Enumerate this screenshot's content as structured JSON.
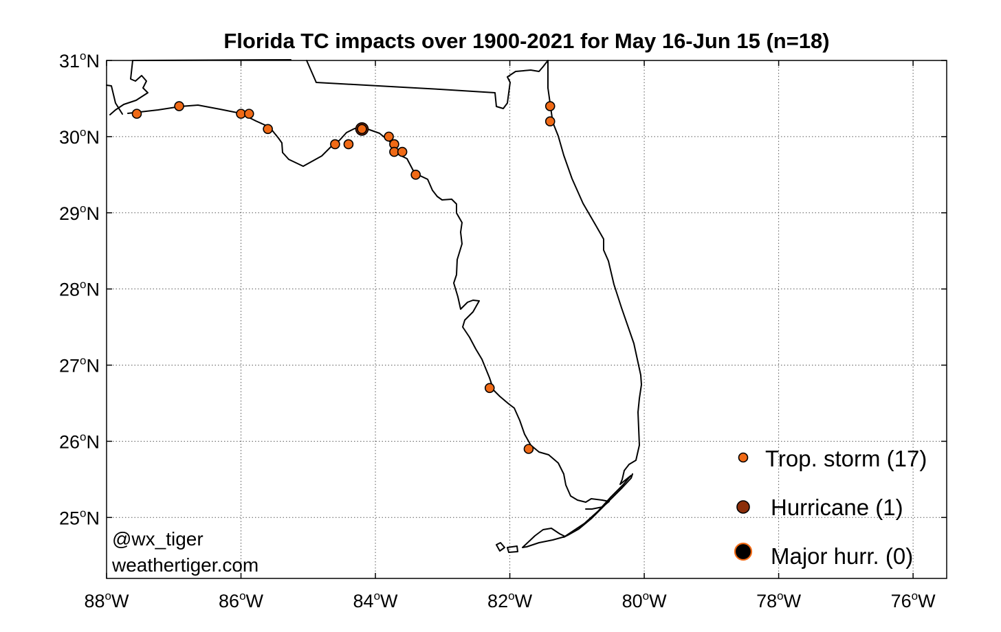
{
  "title": "Florida TC impacts over 1900-2021 for May 16-Jun 15 (n=18)",
  "map_extent": {
    "lon_min": -88,
    "lon_max": -75.5,
    "lat_min": 24.2,
    "lat_max": 31
  },
  "lat_ticks": [
    {
      "value": 31,
      "num": "31",
      "unit": "N"
    },
    {
      "value": 30,
      "num": "30",
      "unit": "N"
    },
    {
      "value": 29,
      "num": "29",
      "unit": "N"
    },
    {
      "value": 28,
      "num": "28",
      "unit": "N"
    },
    {
      "value": 27,
      "num": "27",
      "unit": "N"
    },
    {
      "value": 26,
      "num": "26",
      "unit": "N"
    },
    {
      "value": 25,
      "num": "25",
      "unit": "N"
    }
  ],
  "lon_ticks": [
    {
      "value": -88,
      "num": "88",
      "unit": "W"
    },
    {
      "value": -86,
      "num": "86",
      "unit": "W"
    },
    {
      "value": -84,
      "num": "84",
      "unit": "W"
    },
    {
      "value": -82,
      "num": "82",
      "unit": "W"
    },
    {
      "value": -80,
      "num": "80",
      "unit": "W"
    },
    {
      "value": -78,
      "num": "78",
      "unit": "W"
    },
    {
      "value": -76,
      "num": "76",
      "unit": "W"
    }
  ],
  "degree_symbol": "o",
  "categories": {
    "ts": {
      "label": "Trop. storm (17)",
      "fill": "#f06a16",
      "stroke": "#000000",
      "r": 6.5
    },
    "hu": {
      "label": "Hurricane (1)",
      "fill": "#8b2e0a",
      "stroke": "#000000",
      "r": 9
    },
    "mh": {
      "label": "Major hurr. (0)",
      "fill": "#000000",
      "stroke": "#f06a16",
      "r": 12
    }
  },
  "impacts": [
    {
      "lon": -87.55,
      "lat": 30.3,
      "cat": "ts"
    },
    {
      "lon": -86.92,
      "lat": 30.4,
      "cat": "ts"
    },
    {
      "lon": -86.0,
      "lat": 30.3,
      "cat": "ts"
    },
    {
      "lon": -85.88,
      "lat": 30.3,
      "cat": "ts"
    },
    {
      "lon": -85.6,
      "lat": 30.1,
      "cat": "ts"
    },
    {
      "lon": -84.6,
      "lat": 29.9,
      "cat": "ts"
    },
    {
      "lon": -84.4,
      "lat": 29.9,
      "cat": "ts"
    },
    {
      "lon": -84.2,
      "lat": 30.1,
      "cat": "hu"
    },
    {
      "lon": -84.2,
      "lat": 30.1,
      "cat": "ts"
    },
    {
      "lon": -83.8,
      "lat": 30.0,
      "cat": "ts"
    },
    {
      "lon": -83.72,
      "lat": 29.9,
      "cat": "ts"
    },
    {
      "lon": -83.72,
      "lat": 29.8,
      "cat": "ts"
    },
    {
      "lon": -83.6,
      "lat": 29.8,
      "cat": "ts"
    },
    {
      "lon": -83.4,
      "lat": 29.5,
      "cat": "ts"
    },
    {
      "lon": -82.3,
      "lat": 26.7,
      "cat": "ts"
    },
    {
      "lon": -81.72,
      "lat": 25.9,
      "cat": "ts"
    },
    {
      "lon": -81.4,
      "lat": 30.4,
      "cat": "ts"
    },
    {
      "lon": -81.4,
      "lat": 30.2,
      "cat": "ts"
    }
  ],
  "credits": [
    "@wx_tiger",
    "weathertiger.com"
  ]
}
